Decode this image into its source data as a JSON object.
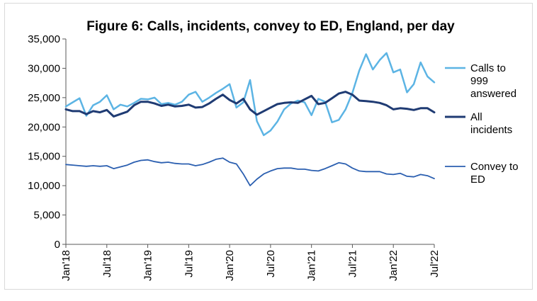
{
  "chart_data": {
    "type": "line",
    "title": "Figure 6: Calls, incidents, convey to ED, England, per day",
    "xlabel": "",
    "ylabel": "",
    "ylim": [
      0,
      35000
    ],
    "y_ticks": [
      0,
      5000,
      10000,
      15000,
      20000,
      25000,
      30000,
      35000
    ],
    "y_tick_labels": [
      "0",
      "5,000",
      "10,000",
      "15,000",
      "20,000",
      "25,000",
      "30,000",
      "35,000"
    ],
    "x_tick_labels": [
      "Jan'18",
      "Jul'18",
      "Jan'19",
      "Jul'19",
      "Jan'20",
      "Jul'20",
      "Jan'21",
      "Jul'21",
      "Jan'22",
      "Jul'22"
    ],
    "x": [
      "Jan'18",
      "Feb'18",
      "Mar'18",
      "Apr'18",
      "May'18",
      "Jun'18",
      "Jul'18",
      "Aug'18",
      "Sep'18",
      "Oct'18",
      "Nov'18",
      "Dec'18",
      "Jan'19",
      "Feb'19",
      "Mar'19",
      "Apr'19",
      "May'19",
      "Jun'19",
      "Jul'19",
      "Aug'19",
      "Sep'19",
      "Oct'19",
      "Nov'19",
      "Dec'19",
      "Jan'20",
      "Feb'20",
      "Mar'20",
      "Apr'20",
      "May'20",
      "Jun'20",
      "Jul'20",
      "Aug'20",
      "Sep'20",
      "Oct'20",
      "Nov'20",
      "Dec'20",
      "Jan'21",
      "Feb'21",
      "Mar'21",
      "Apr'21",
      "May'21",
      "Jun'21",
      "Jul'21",
      "Aug'21",
      "Sep'21",
      "Oct'21",
      "Nov'21",
      "Dec'21",
      "Jan'22",
      "Feb'22",
      "Mar'22",
      "Apr'22",
      "May'22",
      "Jun'22",
      "Jul'22"
    ],
    "grid": false,
    "legend_position": "right",
    "series": [
      {
        "name": "Calls to 999 answered",
        "legend_lines": [
          "Calls to",
          "999",
          "answered"
        ],
        "color": "#5cb4e4",
        "line_width": 2.5,
        "values": [
          23500,
          24200,
          24900,
          21900,
          23700,
          24300,
          25400,
          23000,
          23800,
          23500,
          24100,
          24800,
          24700,
          25000,
          23900,
          24100,
          23800,
          24300,
          25500,
          26000,
          24300,
          25000,
          25800,
          26500,
          27300,
          23300,
          24200,
          28000,
          21000,
          18600,
          19400,
          20900,
          23000,
          24000,
          24500,
          24200,
          22000,
          24800,
          24300,
          20800,
          21200,
          23000,
          25800,
          29600,
          32400,
          29800,
          31400,
          32600,
          29300,
          29800,
          25900,
          27300,
          31000,
          28600,
          27600
        ]
      },
      {
        "name": "All incidents",
        "legend_lines": [
          "All",
          "incidents"
        ],
        "color": "#1f3b73",
        "line_width": 3,
        "values": [
          23000,
          22700,
          22700,
          22200,
          22700,
          22500,
          22900,
          21800,
          22200,
          22600,
          23700,
          24300,
          24300,
          24000,
          23600,
          23800,
          23500,
          23600,
          23800,
          23300,
          23400,
          24000,
          24800,
          25500,
          24600,
          24000,
          24800,
          23000,
          22100,
          22700,
          23300,
          23900,
          24100,
          24200,
          24100,
          24700,
          25300,
          23900,
          24100,
          24900,
          25700,
          26000,
          25500,
          24500,
          24400,
          24300,
          24100,
          23700,
          23000,
          23200,
          23100,
          22900,
          23200,
          23200,
          22500
        ]
      },
      {
        "name": "Convey to ED",
        "legend_lines": [
          "Convey to",
          "ED"
        ],
        "color": "#2b5fb0",
        "line_width": 1.8,
        "values": [
          13600,
          13500,
          13400,
          13300,
          13400,
          13300,
          13400,
          12900,
          13200,
          13500,
          14000,
          14300,
          14400,
          14100,
          13900,
          14000,
          13800,
          13700,
          13700,
          13400,
          13600,
          14000,
          14500,
          14700,
          14000,
          13700,
          12000,
          10000,
          11100,
          12000,
          12500,
          12900,
          13000,
          13000,
          12800,
          12800,
          12600,
          12500,
          12900,
          13400,
          13900,
          13700,
          13000,
          12500,
          12400,
          12400,
          12400,
          12000,
          11900,
          12100,
          11600,
          11500,
          11900,
          11700,
          11200
        ]
      }
    ]
  }
}
